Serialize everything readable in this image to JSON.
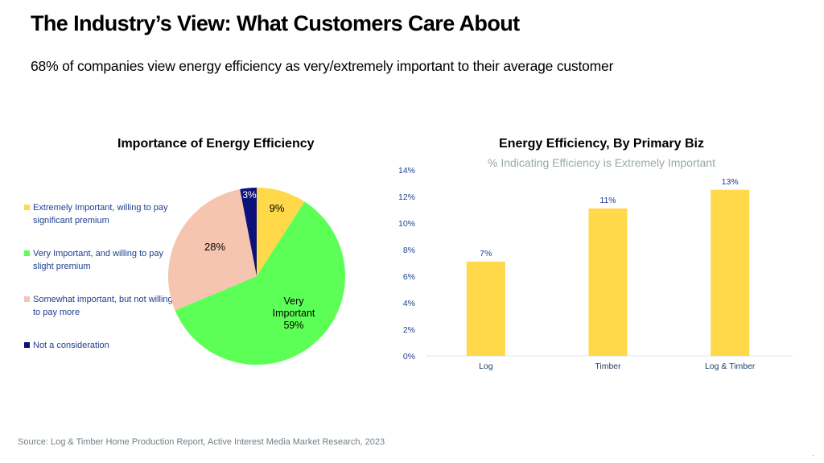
{
  "slide": {
    "title": "The Industry’s View: What Customers Care About",
    "subtitle": "68% of companies view energy efficiency as very/extremely important to their average customer",
    "source": "Source: Log & Timber Home Production Report, Active Interest Media Market Research, 2023"
  },
  "chart_data": [
    {
      "type": "pie",
      "title": "Importance of Energy Efficiency",
      "legend_position": "left",
      "slices": [
        {
          "label": "Extremely Important, willing to pay significant premium",
          "value": 9,
          "data_label": "9%",
          "color": "#FFD94A",
          "label_color": "#000000"
        },
        {
          "label": "Very Important, and willing to pay slight premium",
          "value": 59,
          "data_label": "Very Important 59%",
          "color": "#5CFF55",
          "label_color": "#000000"
        },
        {
          "label": "Somewhat important, but not willing to pay more",
          "value": 28,
          "data_label": "28%",
          "color": "#F6C5AF",
          "label_color": "#000000"
        },
        {
          "label": "Not a consideration",
          "value": 3,
          "data_label": "3%",
          "color": "#0B1279",
          "label_color": "#FFFFFF"
        }
      ]
    },
    {
      "type": "bar",
      "title": "Energy Efficiency, By Primary Biz",
      "subtitle": "% Indicating Efficiency is Extremely Important",
      "categories": [
        "Log",
        "Timber",
        "Log & Timber"
      ],
      "values": [
        7.1,
        11.1,
        12.5
      ],
      "data_labels": [
        "7%",
        "11%",
        "13%"
      ],
      "ylim": [
        0,
        14
      ],
      "yticks": [
        0,
        2,
        4,
        6,
        8,
        10,
        12,
        14
      ],
      "ytick_labels": [
        "0%",
        "2%",
        "4%",
        "6%",
        "8%",
        "10%",
        "12%",
        "14%"
      ],
      "xlabel": "",
      "ylabel": "",
      "grid": false,
      "bar_color": "#FFD94A",
      "text_color": "#1F3F8F"
    }
  ]
}
